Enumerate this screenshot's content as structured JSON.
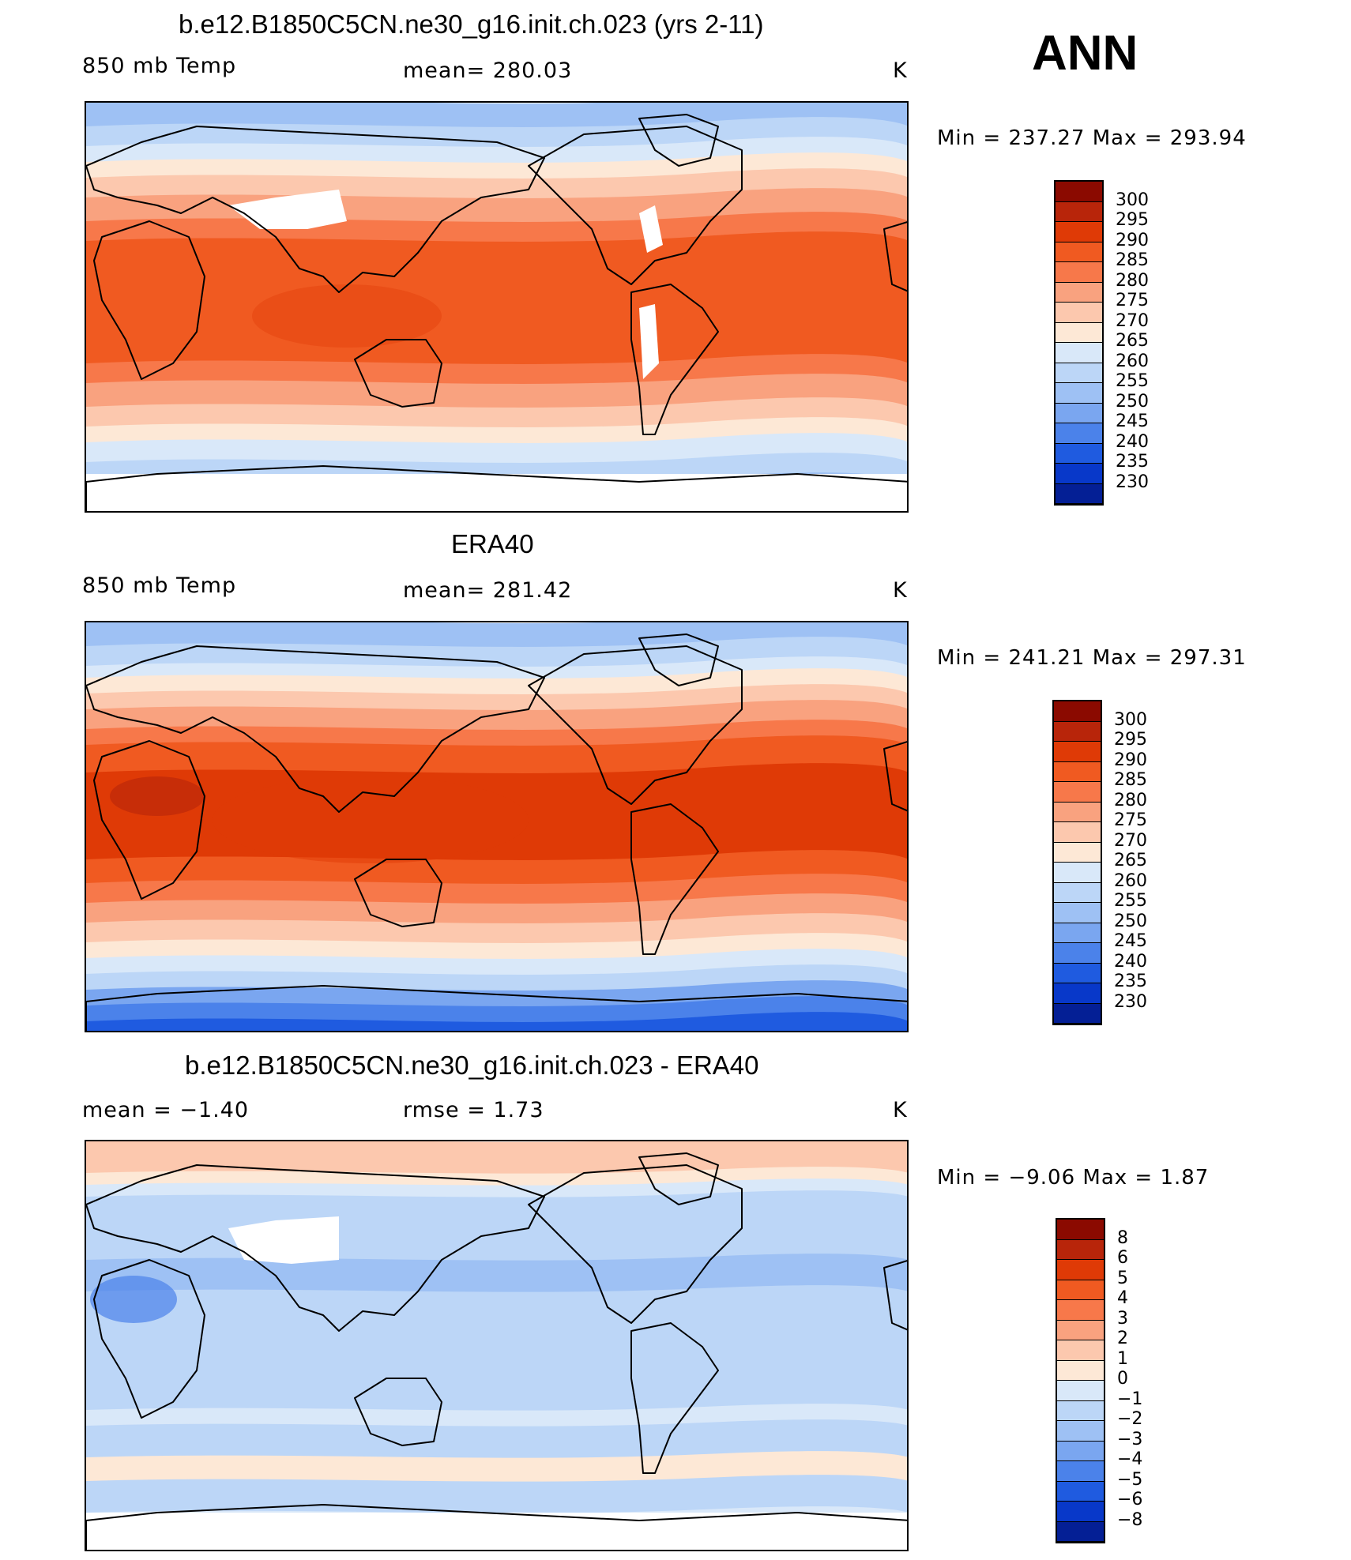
{
  "season": "ANN",
  "panels": [
    {
      "title": "b.e12.B1850C5CN.ne30_g16.init.ch.023 (yrs 2-11)",
      "left_label": "850 mb Temp",
      "center_label": "mean=  280.03",
      "units": "K",
      "minmax": "Min  =  237.27  Max  =  293.94",
      "kind": "model"
    },
    {
      "title": "ERA40",
      "left_label": "850 mb Temp",
      "center_label": "mean=  281.42",
      "units": "K",
      "minmax": "Min  =  241.21  Max  =  297.31",
      "kind": "obs"
    },
    {
      "title": "b.e12.B1850C5CN.ne30_g16.init.ch.023 - ERA40",
      "left_label": "mean  =    −1.40",
      "center_label": "rmse  =     1.73",
      "units": "K",
      "minmax": "Min  =    −9.06  Max  =     1.87",
      "kind": "diff"
    }
  ],
  "colorbars": {
    "temp": {
      "labels": [
        "300",
        "295",
        "290",
        "285",
        "280",
        "275",
        "270",
        "265",
        "260",
        "255",
        "250",
        "245",
        "240",
        "235",
        "230"
      ],
      "colors": [
        "#8b0a00",
        "#b8250a",
        "#df3a06",
        "#f05a21",
        "#f7784a",
        "#f9a27f",
        "#fcc8ae",
        "#fde8d6",
        "#d9e8f9",
        "#bcd6f7",
        "#9ec1f4",
        "#7aa6f0",
        "#4b82ea",
        "#1f5be0",
        "#0838c9",
        "#041f95"
      ]
    },
    "diff": {
      "labels": [
        "8",
        "6",
        "5",
        "4",
        "3",
        "2",
        "1",
        "0",
        "−1",
        "−2",
        "−3",
        "−4",
        "−5",
        "−6",
        "−8"
      ],
      "colors": [
        "#8b0a00",
        "#b8250a",
        "#df3a06",
        "#f05a21",
        "#f7784a",
        "#f9a27f",
        "#fcc8ae",
        "#fde8d6",
        "#d9e8f9",
        "#bcd6f7",
        "#9ec1f4",
        "#7aa6f0",
        "#4b82ea",
        "#1f5be0",
        "#0838c9",
        "#041f95"
      ]
    }
  }
}
